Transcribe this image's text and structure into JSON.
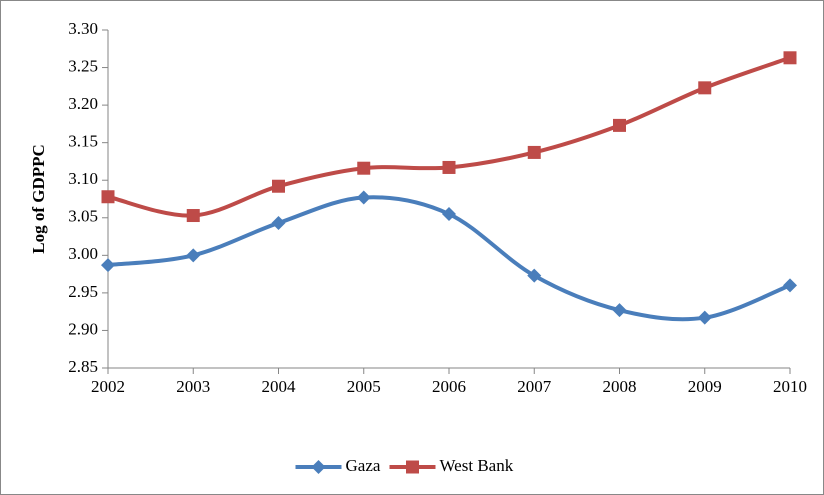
{
  "chart_data": {
    "type": "line",
    "y_label": "Log of GDPPC",
    "x": [
      2002,
      2003,
      2004,
      2005,
      2006,
      2007,
      2008,
      2009,
      2010
    ],
    "xlim": [
      2002,
      2010
    ],
    "xticks": [
      2002,
      2003,
      2004,
      2005,
      2006,
      2007,
      2008,
      2009,
      2010
    ],
    "ylim": [
      2.85,
      3.3
    ],
    "yticks": [
      2.85,
      {
        "value": 2.9,
        "label": "2.90"
      },
      2.95,
      {
        "value": 3,
        "label": "3.00"
      },
      3.05,
      {
        "value": 3.1,
        "label": "3.10"
      },
      3.15,
      {
        "value": 3.2,
        "label": "3.20"
      },
      3.25,
      {
        "value": 3.3,
        "label": "3.30"
      }
    ],
    "smooth": true,
    "legend": "bottom",
    "series": [
      {
        "name": "Gaza",
        "color": "#4a7ebb",
        "marker": "diamond",
        "values": [
          2.987,
          3.0,
          3.043,
          3.077,
          3.055,
          2.973,
          2.927,
          2.917,
          2.96
        ]
      },
      {
        "name": "West Bank",
        "color": "#be4b48",
        "marker": "square",
        "values": [
          3.078,
          3.053,
          3.092,
          3.116,
          3.117,
          3.137,
          3.173,
          3.223,
          3.263
        ]
      }
    ]
  }
}
